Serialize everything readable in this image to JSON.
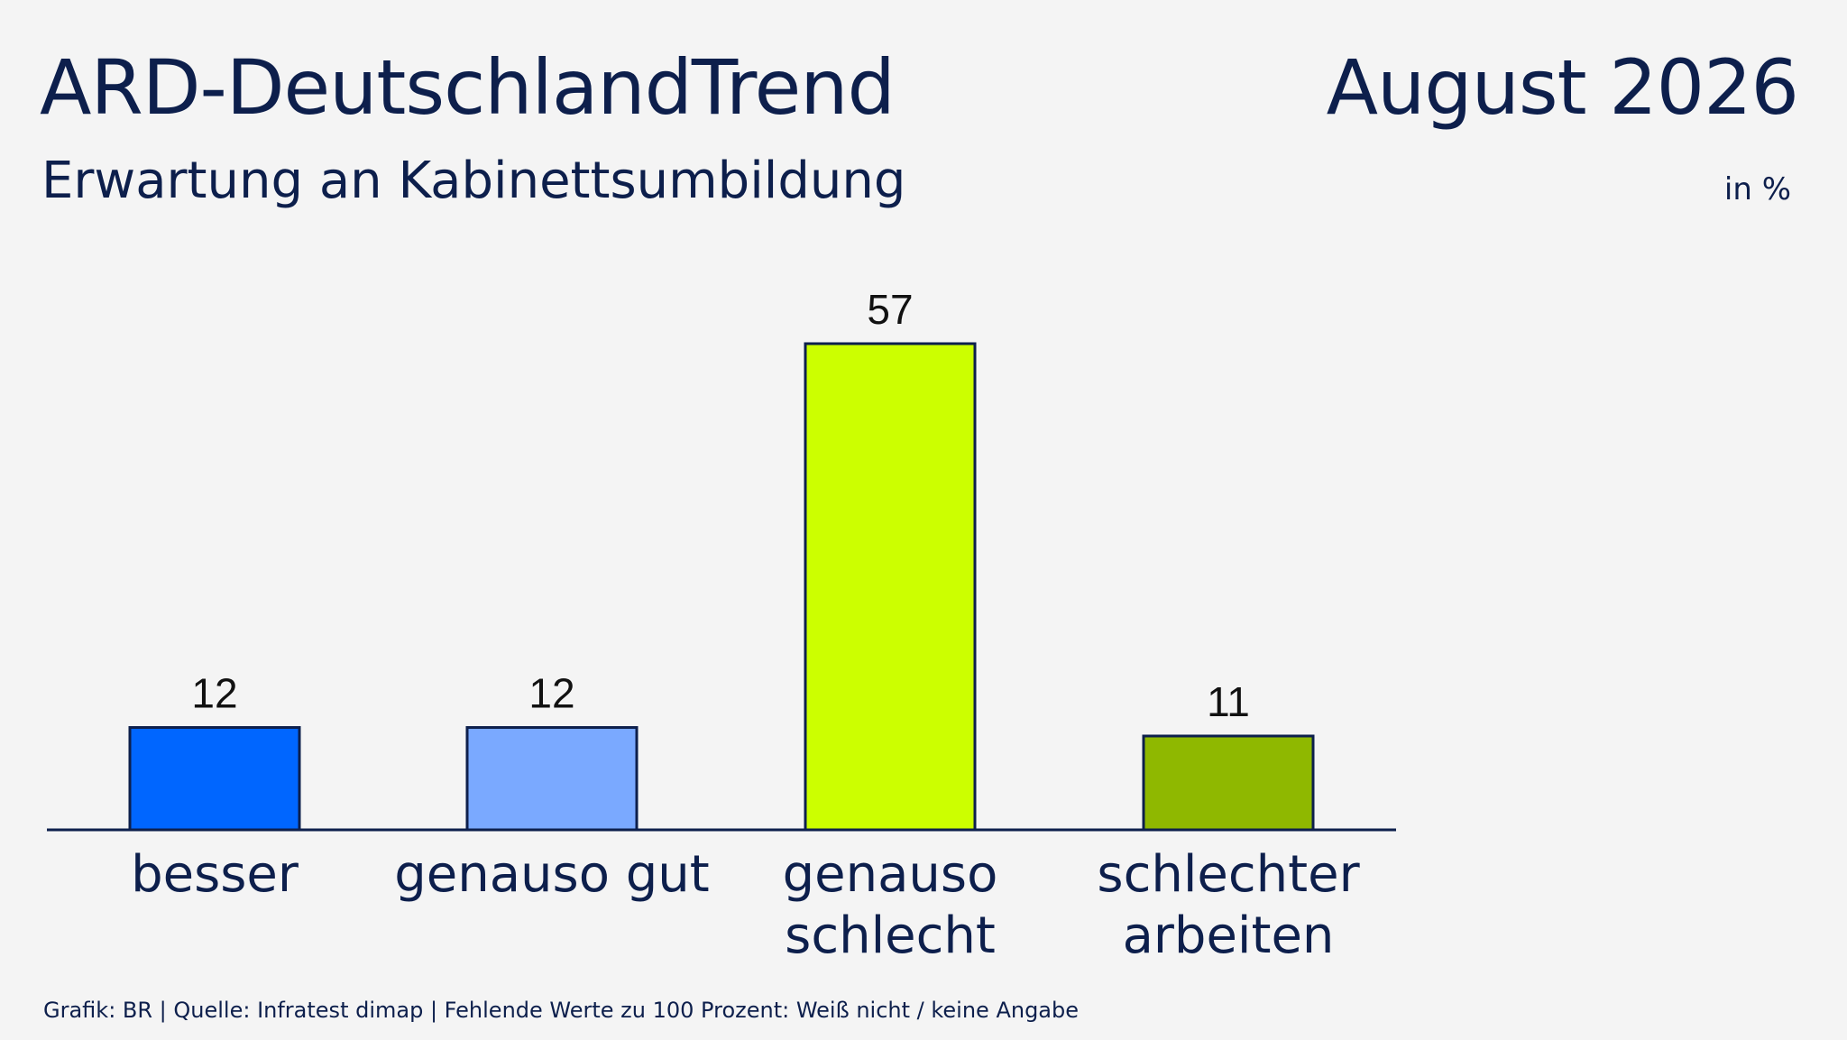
{
  "header": {
    "title": "ARD-DeutschlandTrend",
    "date": "August 2026",
    "subtitle": "Erwartung an Kabinettsumbildung",
    "unit": "in %"
  },
  "footer": {
    "source": "Grafik: BR | Quelle: Infratest dimap | Fehlende Werte zu 100 Prozent: Weiß nicht / keine Angabe"
  },
  "chart_data": {
    "type": "bar",
    "categories": [
      [
        "besser"
      ],
      [
        "genauso gut"
      ],
      [
        "genauso",
        "schlecht"
      ],
      [
        "schlechter",
        "arbeiten"
      ]
    ],
    "values": [
      12,
      12,
      57,
      11
    ],
    "colors": [
      "#0066ff",
      "#7aa9ff",
      "#ccff00",
      "#8fb800"
    ],
    "bar_outline": "#0d1f4c",
    "axis_color": "#0d1f4c",
    "ylim": [
      0,
      57
    ],
    "grid": false
  }
}
